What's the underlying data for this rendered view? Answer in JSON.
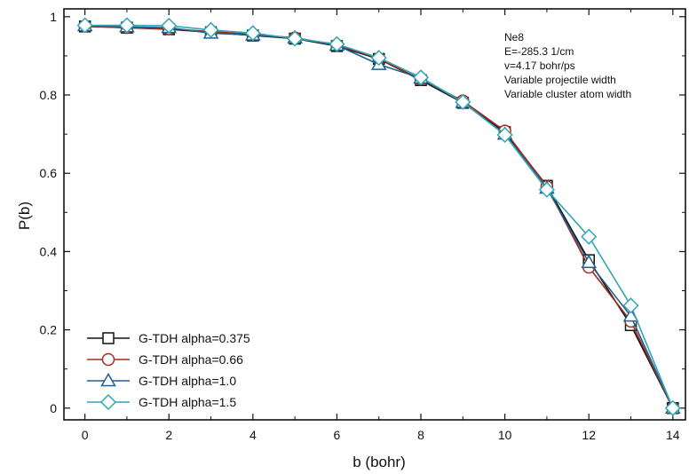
{
  "chart_data": {
    "type": "line",
    "xlabel": "b (bohr)",
    "ylabel": "P(b)",
    "xlim": [
      -0.5,
      14.3
    ],
    "ylim": [
      -0.03,
      1.02
    ],
    "xticks": [
      0,
      2,
      4,
      6,
      8,
      10,
      12,
      14
    ],
    "yticks": [
      0,
      0.2,
      0.4,
      0.6,
      0.8,
      1
    ],
    "ytick_labels": [
      "0",
      "0.2",
      "0.4",
      "0.6",
      "0.8",
      "1"
    ],
    "xtick_labels": [
      "0",
      "2",
      "4",
      "6",
      "8",
      "10",
      "12",
      "14"
    ],
    "grid": false,
    "legend_position": "bottom-left",
    "annotation": [
      "Ne8",
      "E=-285.3 1/cm",
      "v=4.17 bohr/ps",
      "Variable projectile width",
      "Variable cluster atom width"
    ],
    "x": [
      0,
      1,
      2,
      3,
      4,
      5,
      6,
      7,
      8,
      9,
      10,
      11,
      12,
      13,
      14
    ],
    "series": [
      {
        "name": "G-TDH alpha=0.375",
        "marker": "square",
        "color": "#111111",
        "values": [
          0.975,
          0.972,
          0.968,
          0.96,
          0.952,
          0.944,
          0.925,
          0.892,
          0.838,
          0.78,
          0.705,
          0.568,
          0.378,
          0.212,
          0.0
        ]
      },
      {
        "name": "G-TDH alpha=0.66",
        "marker": "circle",
        "color": "#a52a1c",
        "values": [
          0.976,
          0.972,
          0.969,
          0.962,
          0.955,
          0.946,
          0.928,
          0.893,
          0.84,
          0.785,
          0.708,
          0.566,
          0.36,
          0.222,
          0.0
        ]
      },
      {
        "name": "G-TDH alpha=1.0",
        "marker": "triangle",
        "color": "#1f5f8f",
        "values": [
          0.977,
          0.974,
          0.972,
          0.958,
          0.953,
          0.946,
          0.927,
          0.878,
          0.843,
          0.781,
          0.7,
          0.562,
          0.372,
          0.235,
          0.0
        ]
      },
      {
        "name": "G-TDH alpha=1.5",
        "marker": "diamond",
        "color": "#2fa5b5",
        "values": [
          0.978,
          0.978,
          0.977,
          0.966,
          0.958,
          0.944,
          0.93,
          0.895,
          0.845,
          0.782,
          0.698,
          0.558,
          0.438,
          0.262,
          0.0
        ]
      }
    ]
  }
}
